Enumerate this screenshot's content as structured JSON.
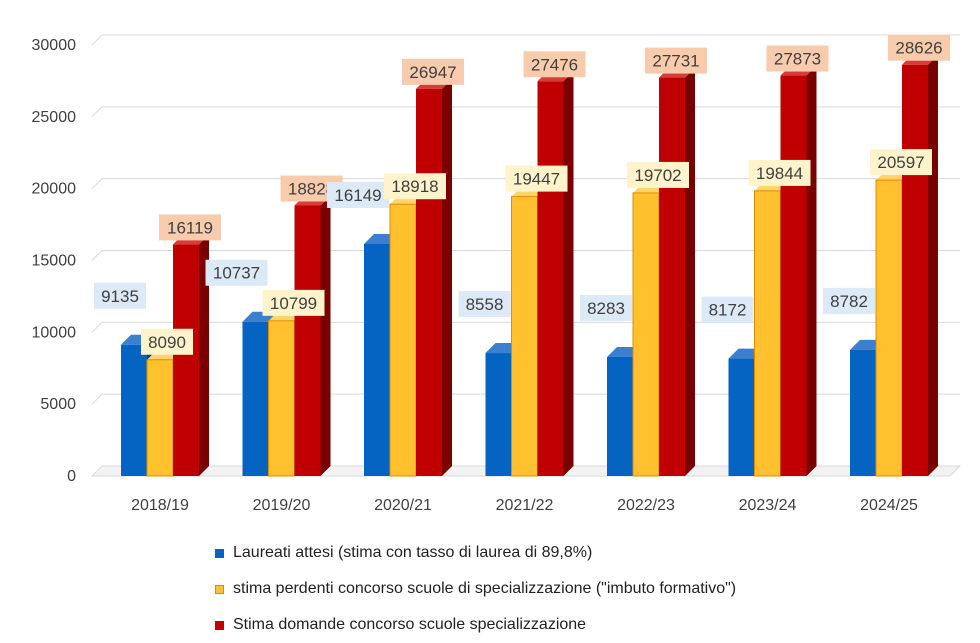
{
  "chart_data": {
    "type": "bar",
    "style": "3d-clustered-column",
    "categories": [
      "2018/19",
      "2019/20",
      "2020/21",
      "2021/22",
      "2022/23",
      "2023/24",
      "2024/25"
    ],
    "series": [
      {
        "name": "Laureati attesi (stima con tasso di laurea di 89,8%)",
        "values": [
          9135,
          10737,
          16149,
          8558,
          8283,
          8172,
          8782
        ],
        "color": "#0563C1",
        "side_color": "#03428A",
        "top_color": "#3A7FD0",
        "label_bg": "#DCE9F7"
      },
      {
        "name": "stima perdenti concorso scuole di specializzazione (\"imbuto formativo\")",
        "values": [
          8090,
          10799,
          18918,
          19447,
          19702,
          19844,
          20597
        ],
        "color": "#FFC12E",
        "side_color": "#E08B00",
        "top_color": "#FFD46B",
        "label_bg": "#FFF3CC"
      },
      {
        "name": "Stima domande concorso scuole specializzazione",
        "values": [
          16119,
          18828,
          26947,
          27476,
          27731,
          27873,
          28626
        ],
        "color": "#C00000",
        "side_color": "#7A0000",
        "top_color": "#D93A3A",
        "label_bg": "#F8CBAD"
      }
    ],
    "y_ticks": [
      "0",
      "5000",
      "10000",
      "15000",
      "20000",
      "25000",
      "30000"
    ],
    "ylim": [
      0,
      30000
    ],
    "grid": true,
    "legend_position": "bottom"
  }
}
